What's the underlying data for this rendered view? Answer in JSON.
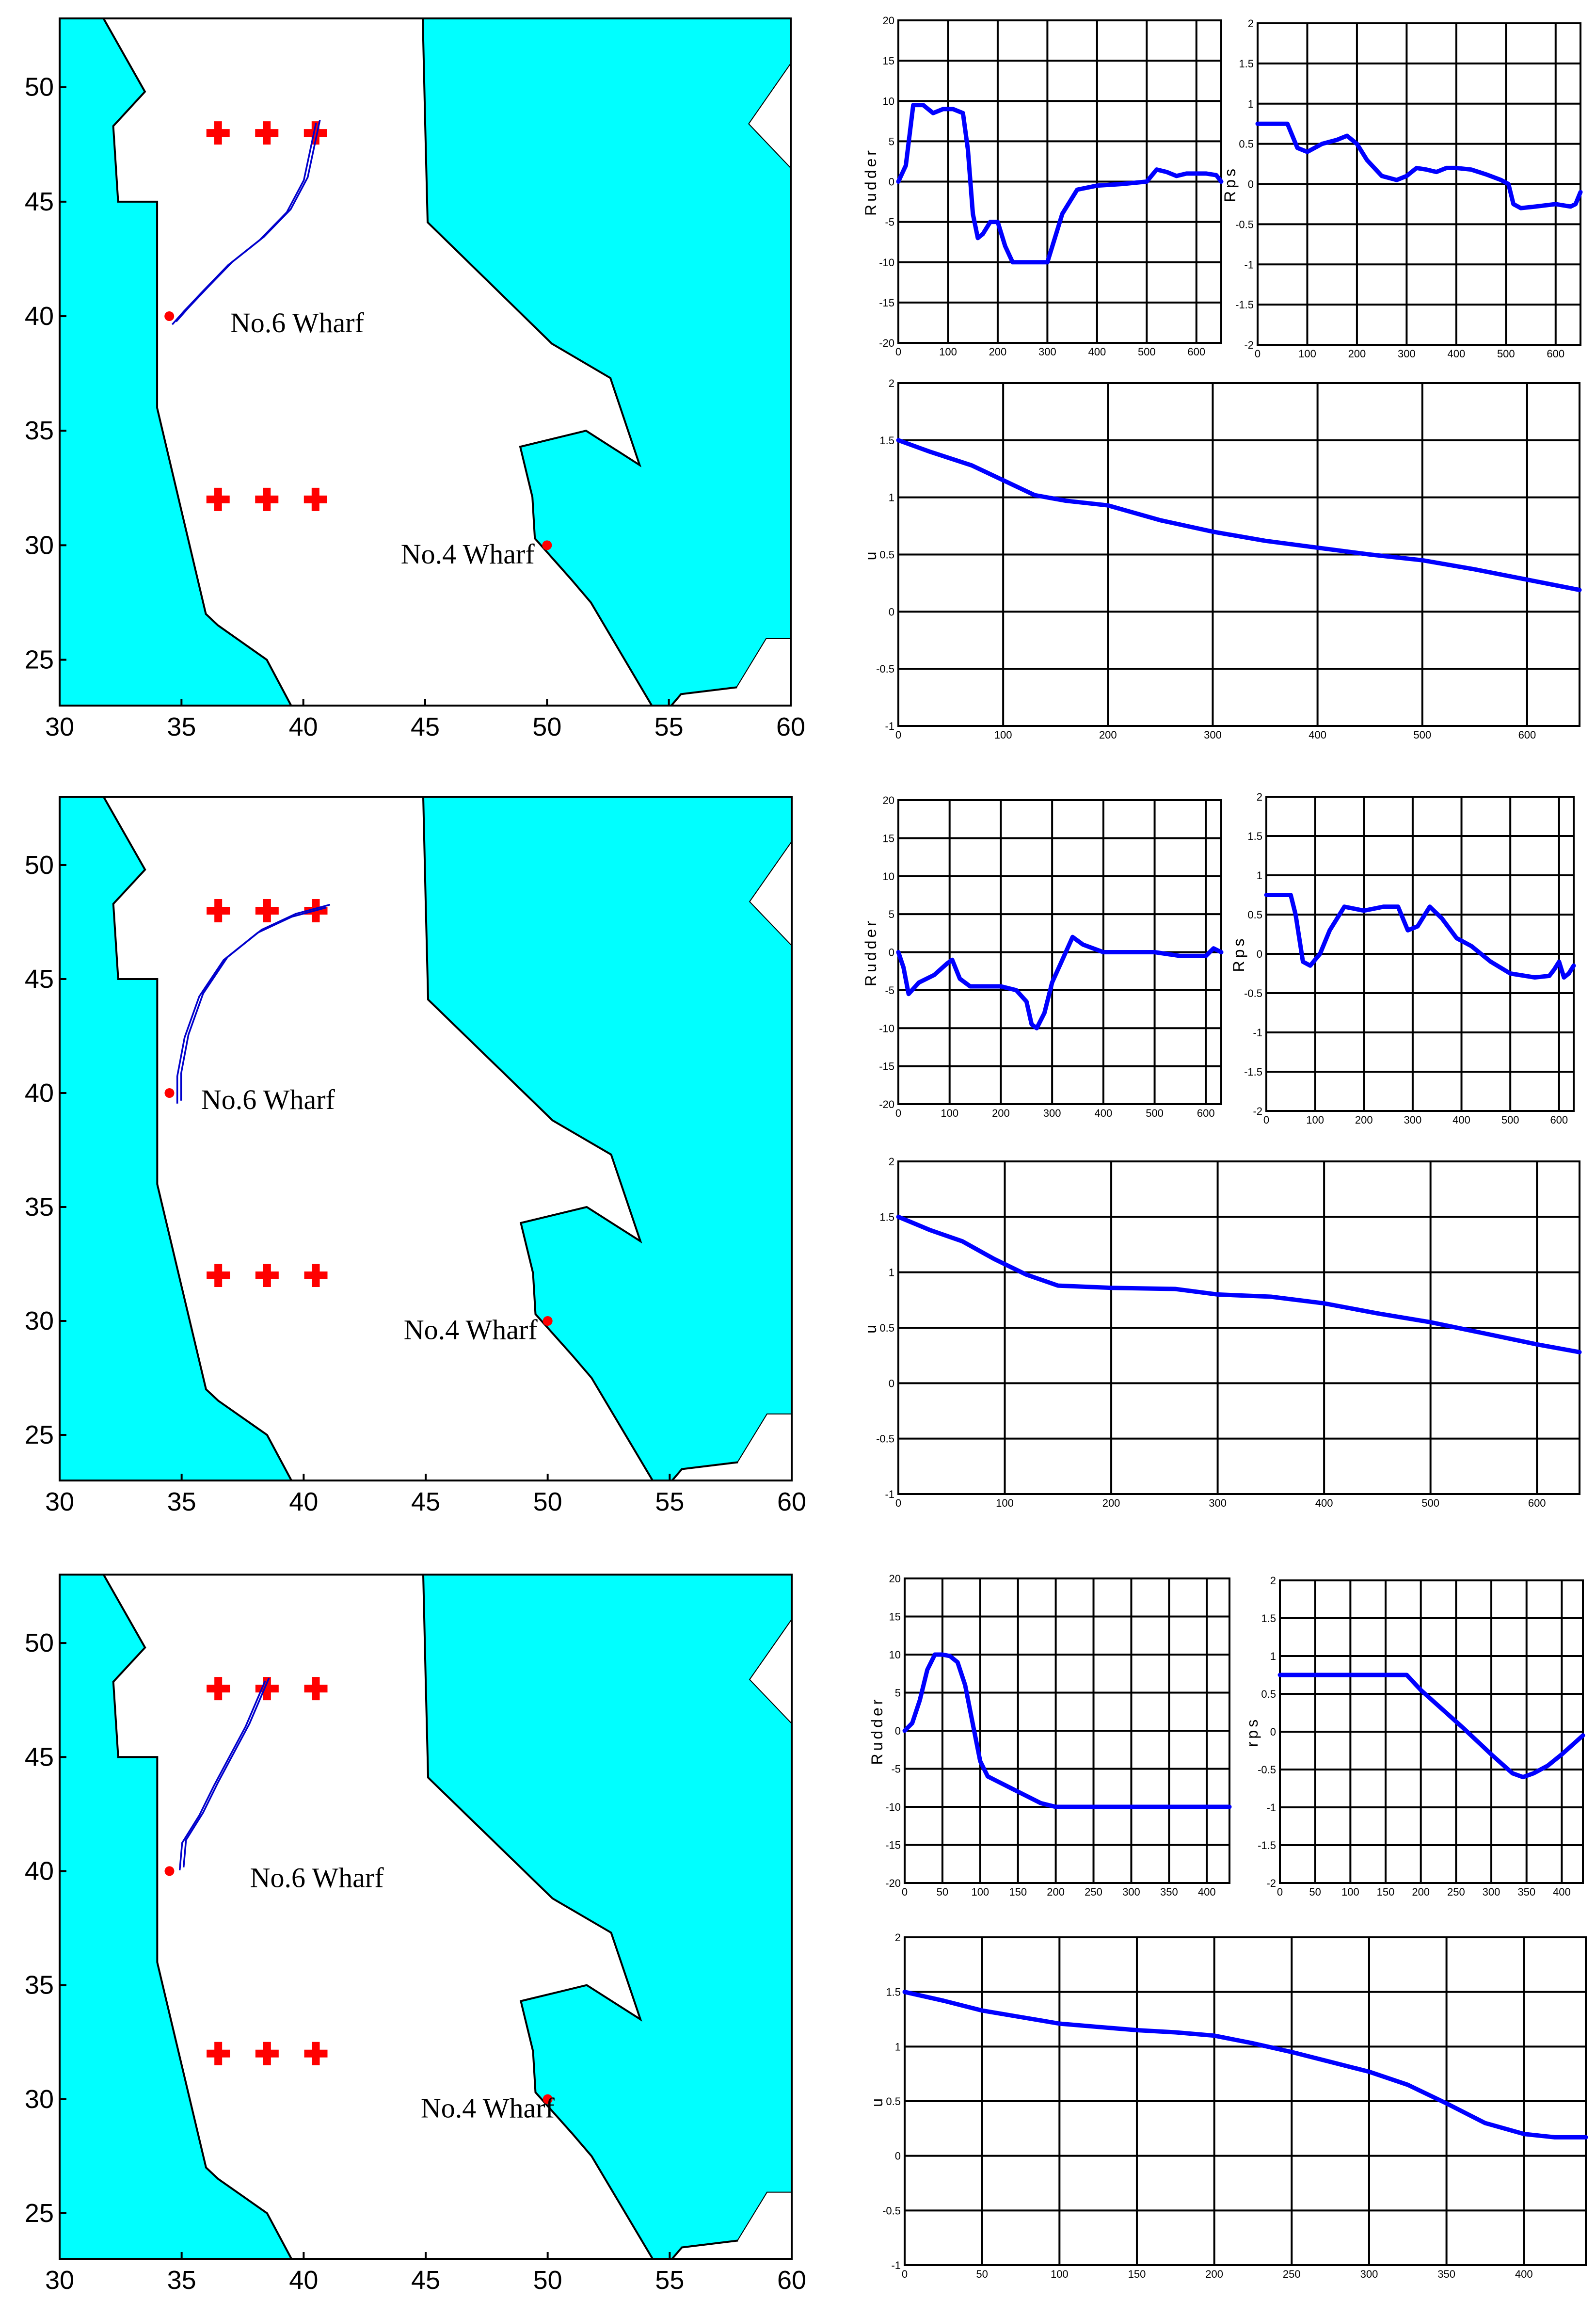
{
  "chart_data": [
    {
      "panel": 1,
      "map": {
        "type": "scatter",
        "xlim": [
          30,
          60
        ],
        "ylim": [
          23,
          53
        ],
        "xticks": [
          30,
          35,
          40,
          45,
          50,
          55,
          60
        ],
        "yticks": [
          25,
          30,
          35,
          40,
          45,
          50
        ],
        "crosses": [
          [
            36.5,
            48
          ],
          [
            38.5,
            48
          ],
          [
            40.5,
            48
          ],
          [
            36.5,
            32
          ],
          [
            38.5,
            32
          ],
          [
            40.5,
            32
          ]
        ],
        "points": [
          [
            34.5,
            40
          ],
          [
            50,
            30
          ]
        ],
        "labels": [
          {
            "text": "No.6 Wharf",
            "x": 37.0,
            "y": 39.3
          },
          {
            "text": "No.4 Wharf",
            "x": 44.0,
            "y": 29.2
          }
        ],
        "track": [
          [
            34.7,
            39.7
          ],
          [
            35.2,
            40.3
          ],
          [
            36.0,
            41.2
          ],
          [
            37.0,
            42.3
          ],
          [
            38.3,
            43.4
          ],
          [
            39.4,
            44.6
          ],
          [
            40.1,
            46.0
          ],
          [
            40.6,
            48.5
          ]
        ]
      },
      "rudder": {
        "type": "line",
        "ylabel": "Rudder",
        "xlim": [
          0,
          650
        ],
        "ylim": [
          -20,
          20
        ],
        "xticks": [
          0,
          100,
          200,
          300,
          400,
          500,
          600
        ],
        "yticks": [
          -20,
          -15,
          -10,
          -5,
          0,
          5,
          10,
          15,
          20
        ],
        "x": [
          0,
          15,
          30,
          50,
          70,
          90,
          110,
          130,
          140,
          150,
          160,
          170,
          185,
          200,
          215,
          230,
          250,
          280,
          300,
          315,
          330,
          360,
          400,
          450,
          500,
          520,
          540,
          560,
          580,
          620,
          640,
          650
        ],
        "y": [
          0,
          2,
          9.5,
          9.5,
          8.5,
          9,
          9,
          8.5,
          4,
          -4,
          -7,
          -6.5,
          -5,
          -5,
          -8,
          -10,
          -10,
          -10,
          -10,
          -7,
          -4,
          -1,
          -0.5,
          -0.3,
          0,
          1.5,
          1.2,
          0.7,
          1,
          1,
          0.8,
          0
        ]
      },
      "rps": {
        "type": "line",
        "ylabel": "Rps",
        "xlim": [
          0,
          650
        ],
        "ylim": [
          -2,
          2
        ],
        "xticks": [
          0,
          100,
          200,
          300,
          400,
          500,
          600
        ],
        "yticks": [
          -2,
          -1.5,
          -1,
          -0.5,
          0,
          0.5,
          1,
          1.5,
          2
        ],
        "x": [
          0,
          60,
          80,
          100,
          130,
          160,
          180,
          200,
          220,
          250,
          280,
          300,
          320,
          340,
          360,
          380,
          400,
          430,
          460,
          490,
          505,
          515,
          530,
          560,
          600,
          630,
          640,
          650
        ],
        "y": [
          0.75,
          0.75,
          0.45,
          0.4,
          0.5,
          0.55,
          0.6,
          0.5,
          0.3,
          0.1,
          0.05,
          0.1,
          0.2,
          0.18,
          0.15,
          0.2,
          0.2,
          0.18,
          0.12,
          0.05,
          0,
          -0.25,
          -0.3,
          -0.28,
          -0.25,
          -0.28,
          -0.25,
          -0.1
        ]
      },
      "u": {
        "type": "line",
        "ylabel": "u",
        "xlim": [
          0,
          650
        ],
        "ylim": [
          -1,
          2
        ],
        "xticks": [
          0,
          100,
          200,
          300,
          400,
          500,
          600
        ],
        "yticks": [
          -1,
          -0.5,
          0,
          0.5,
          1,
          1.5,
          2
        ],
        "x": [
          0,
          30,
          70,
          100,
          130,
          160,
          200,
          250,
          300,
          350,
          400,
          450,
          500,
          550,
          600,
          650
        ],
        "y": [
          1.5,
          1.4,
          1.28,
          1.15,
          1.02,
          0.97,
          0.93,
          0.8,
          0.7,
          0.62,
          0.56,
          0.5,
          0.45,
          0.37,
          0.28,
          0.19
        ]
      }
    },
    {
      "panel": 2,
      "map": {
        "type": "scatter",
        "xlim": [
          30,
          60
        ],
        "ylim": [
          23,
          53
        ],
        "xticks": [
          30,
          35,
          40,
          45,
          50,
          55,
          60
        ],
        "yticks": [
          25,
          30,
          35,
          40,
          45,
          50
        ],
        "crosses": [
          [
            36.5,
            48
          ],
          [
            38.5,
            48
          ],
          [
            40.5,
            48
          ],
          [
            36.5,
            32
          ],
          [
            38.5,
            32
          ],
          [
            40.5,
            32
          ]
        ],
        "points": [
          [
            34.5,
            40
          ],
          [
            50,
            30
          ]
        ],
        "labels": [
          {
            "text": "No.6 Wharf",
            "x": 35.8,
            "y": 39.3
          },
          {
            "text": "No.4 Wharf",
            "x": 44.1,
            "y": 29.2
          }
        ],
        "track": [
          [
            34.9,
            39.6
          ],
          [
            34.9,
            40.8
          ],
          [
            35.2,
            42.5
          ],
          [
            35.8,
            44.3
          ],
          [
            36.8,
            45.9
          ],
          [
            38.2,
            47.1
          ],
          [
            39.6,
            47.8
          ],
          [
            41.0,
            48.2
          ]
        ]
      },
      "rudder": {
        "type": "line",
        "ylabel": "Rudder",
        "xlim": [
          0,
          630
        ],
        "ylim": [
          -20,
          20
        ],
        "xticks": [
          0,
          100,
          200,
          300,
          400,
          500,
          600
        ],
        "yticks": [
          -20,
          -15,
          -10,
          -5,
          0,
          5,
          10,
          15,
          20
        ],
        "x": [
          0,
          10,
          20,
          40,
          70,
          95,
          105,
          120,
          140,
          170,
          200,
          230,
          250,
          260,
          270,
          285,
          300,
          320,
          340,
          360,
          400,
          450,
          500,
          550,
          600,
          615,
          630
        ],
        "y": [
          0,
          -2,
          -5.5,
          -4,
          -3,
          -1.5,
          -1,
          -3.5,
          -4.5,
          -4.5,
          -4.5,
          -5,
          -6.5,
          -9.5,
          -10,
          -8,
          -4,
          -1,
          2,
          1,
          0,
          0,
          0,
          -0.5,
          -0.5,
          0.5,
          0
        ]
      },
      "rps": {
        "type": "line",
        "ylabel": "Rps",
        "xlim": [
          0,
          630
        ],
        "ylim": [
          -2,
          2
        ],
        "xticks": [
          0,
          100,
          200,
          300,
          400,
          500,
          600
        ],
        "yticks": [
          -2,
          -1.5,
          -1,
          -0.5,
          0,
          0.5,
          1,
          1.5,
          2
        ],
        "x": [
          0,
          50,
          60,
          75,
          90,
          110,
          130,
          160,
          200,
          240,
          270,
          290,
          310,
          335,
          360,
          390,
          420,
          460,
          500,
          550,
          580,
          590,
          600,
          610,
          620,
          630
        ],
        "y": [
          0.75,
          0.75,
          0.5,
          -0.1,
          -0.15,
          0,
          0.3,
          0.6,
          0.55,
          0.6,
          0.6,
          0.3,
          0.35,
          0.6,
          0.45,
          0.2,
          0.1,
          -0.1,
          -0.25,
          -0.3,
          -0.28,
          -0.2,
          -0.1,
          -0.3,
          -0.25,
          -0.15
        ]
      },
      "u": {
        "type": "line",
        "ylabel": "u",
        "xlim": [
          0,
          640
        ],
        "ylim": [
          -1,
          2
        ],
        "xticks": [
          0,
          100,
          200,
          300,
          400,
          500,
          600
        ],
        "yticks": [
          -1,
          -0.5,
          0,
          0.5,
          1,
          1.5,
          2
        ],
        "x": [
          0,
          30,
          60,
          90,
          120,
          150,
          200,
          260,
          300,
          350,
          400,
          450,
          500,
          550,
          600,
          640
        ],
        "y": [
          1.5,
          1.38,
          1.28,
          1.12,
          0.98,
          0.88,
          0.86,
          0.85,
          0.8,
          0.78,
          0.72,
          0.63,
          0.55,
          0.45,
          0.35,
          0.28
        ]
      }
    },
    {
      "panel": 3,
      "map": {
        "type": "scatter",
        "xlim": [
          30,
          60
        ],
        "ylim": [
          23,
          53
        ],
        "xticks": [
          30,
          35,
          40,
          45,
          50,
          55,
          60
        ],
        "yticks": [
          25,
          30,
          35,
          40,
          45,
          50
        ],
        "crosses": [
          [
            36.5,
            48
          ],
          [
            38.5,
            48
          ],
          [
            40.5,
            48
          ],
          [
            36.5,
            32
          ],
          [
            38.5,
            32
          ],
          [
            40.5,
            32
          ]
        ],
        "points": [
          [
            34.5,
            40
          ],
          [
            50,
            30
          ]
        ],
        "labels": [
          {
            "text": "No.6 Wharf",
            "x": 37.8,
            "y": 39.3
          },
          {
            "text": "No.4 Wharf",
            "x": 44.8,
            "y": 29.2
          }
        ],
        "track": [
          [
            35.0,
            40.1
          ],
          [
            35.1,
            41.3
          ],
          [
            35.8,
            42.5
          ],
          [
            36.4,
            43.8
          ],
          [
            37.1,
            45.2
          ],
          [
            37.7,
            46.4
          ],
          [
            38.1,
            47.4
          ],
          [
            38.5,
            48.4
          ]
        ]
      },
      "rudder": {
        "type": "line",
        "ylabel": "Rudder",
        "xlim": [
          0,
          430
        ],
        "ylim": [
          -20,
          20
        ],
        "xticks": [
          0,
          50,
          100,
          150,
          200,
          250,
          300,
          350,
          400
        ],
        "yticks": [
          -20,
          -15,
          -10,
          -5,
          0,
          5,
          10,
          15,
          20
        ],
        "x": [
          0,
          10,
          20,
          30,
          40,
          50,
          60,
          70,
          80,
          90,
          100,
          110,
          120,
          140,
          160,
          180,
          200,
          250,
          300,
          350,
          400,
          430
        ],
        "y": [
          0,
          1,
          4,
          8,
          10,
          10,
          9.8,
          9,
          6,
          1,
          -4,
          -6,
          -6.5,
          -7.5,
          -8.5,
          -9.5,
          -10,
          -10,
          -10,
          -10,
          -10,
          -10
        ]
      },
      "rps": {
        "type": "line",
        "ylabel": "rps",
        "xlim": [
          0,
          430
        ],
        "ylim": [
          -2,
          2
        ],
        "xticks": [
          0,
          50,
          100,
          150,
          200,
          250,
          300,
          350,
          400
        ],
        "yticks": [
          -2,
          -1.5,
          -1,
          -0.5,
          0,
          0.5,
          1,
          1.5,
          2
        ],
        "x": [
          0,
          50,
          100,
          150,
          180,
          200,
          230,
          260,
          300,
          330,
          345,
          360,
          380,
          400,
          430
        ],
        "y": [
          0.75,
          0.75,
          0.75,
          0.75,
          0.75,
          0.55,
          0.3,
          0.05,
          -0.3,
          -0.55,
          -0.6,
          -0.55,
          -0.45,
          -0.3,
          -0.05
        ]
      },
      "u": {
        "type": "line",
        "ylabel": "u",
        "xlim": [
          0,
          440
        ],
        "ylim": [
          -1,
          2
        ],
        "xticks": [
          0,
          50,
          100,
          150,
          200,
          250,
          300,
          350,
          400
        ],
        "yticks": [
          -1,
          -0.5,
          0,
          0.5,
          1,
          1.5,
          2
        ],
        "x": [
          0,
          25,
          50,
          75,
          100,
          125,
          150,
          175,
          200,
          225,
          250,
          275,
          300,
          325,
          350,
          375,
          400,
          420,
          440
        ],
        "y": [
          1.5,
          1.42,
          1.33,
          1.27,
          1.21,
          1.18,
          1.15,
          1.13,
          1.1,
          1.03,
          0.95,
          0.86,
          0.77,
          0.65,
          0.48,
          0.3,
          0.2,
          0.17,
          0.17
        ]
      }
    }
  ]
}
